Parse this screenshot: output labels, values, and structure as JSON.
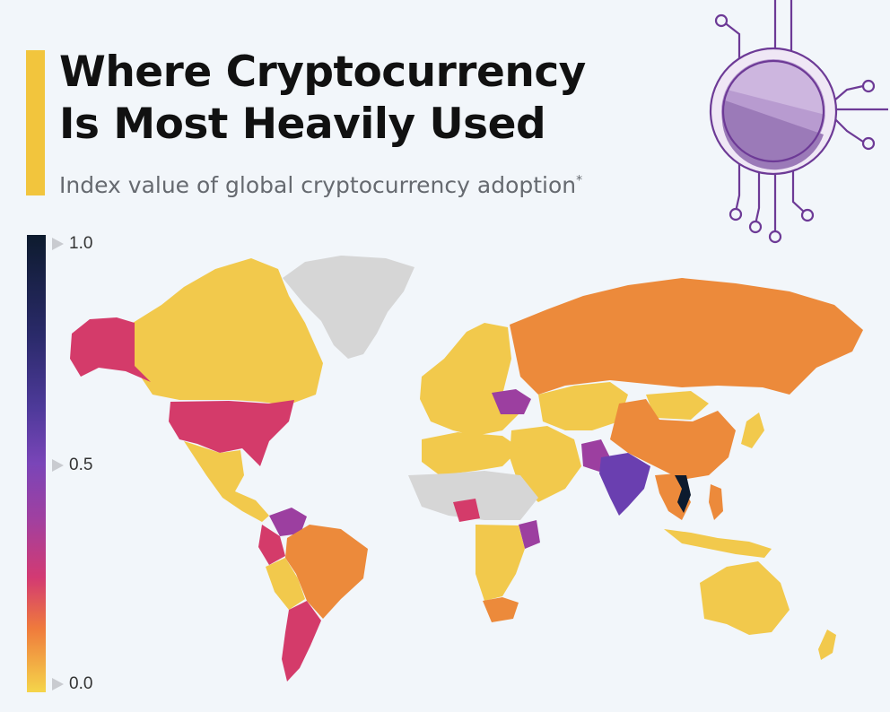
{
  "title_line1": "Where Cryptocurrency",
  "title_line2": "Is Most Heavily Used",
  "subtitle": "Index value of global cryptocurrency adoption",
  "subtitle_mark": "*",
  "legend": {
    "ticks": [
      {
        "label": "1.0",
        "value": 1.0
      },
      {
        "label": "0.5",
        "value": 0.5
      },
      {
        "label": "0.0",
        "value": 0.0
      }
    ],
    "colors": [
      "#0d1b2e",
      "#4e3a9a",
      "#a040a0",
      "#d33a72",
      "#ef7a3c",
      "#f5d54a"
    ]
  },
  "colors": {
    "accent": "#f2c53d",
    "low": "#f2c94c",
    "mid_low": "#ec8a3b",
    "mid": "#d43b6a",
    "mid_high": "#9c3fa0",
    "high": "#6a3fb0",
    "top": "#0d1b2e",
    "no_data": "#d9d9d9",
    "decoration": "#8a5cb8"
  },
  "decoration_icon": "crypto-coin-circuit-icon"
}
